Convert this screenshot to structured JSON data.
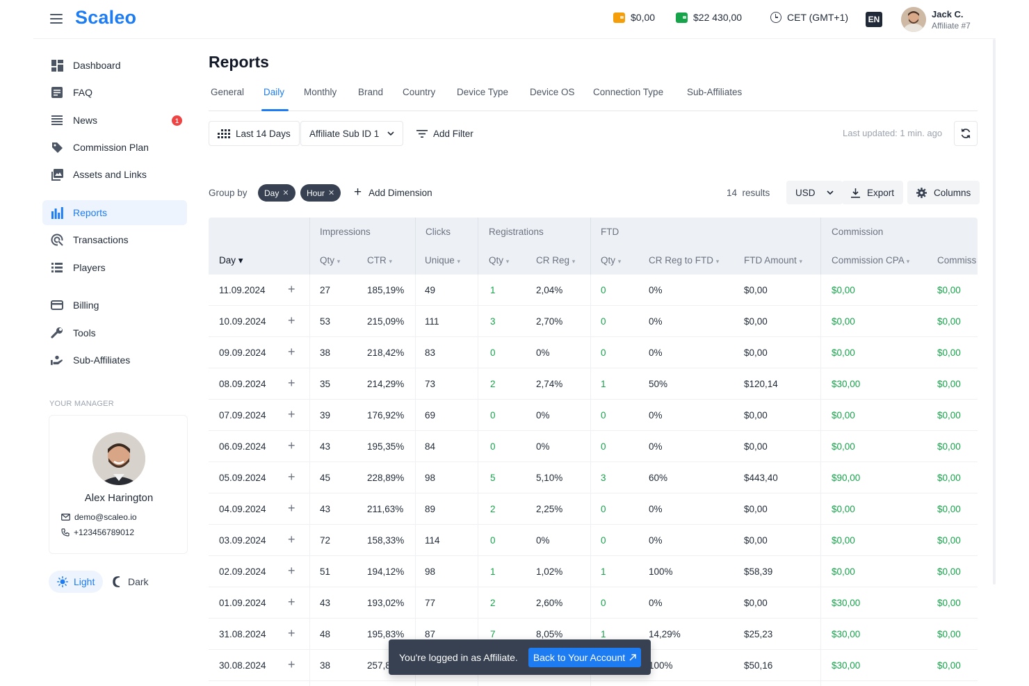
{
  "header": {
    "logo": "Scaleo",
    "balance_1": "$0,00",
    "balance_2": "$22 430,00",
    "timezone": "CET (GMT+1)",
    "language": "EN",
    "user_name": "Jack C.",
    "user_role": "Affiliate #7",
    "colors": {
      "brand": "#1d7cf2",
      "wallet_1": "#f59e0b",
      "wallet_2": "#16a34a"
    }
  },
  "sidebar": {
    "items": [
      {
        "label": "Dashboard",
        "icon": "dashboard-icon"
      },
      {
        "label": "FAQ",
        "icon": "faq-icon"
      },
      {
        "label": "News",
        "icon": "news-icon",
        "badge": "1"
      },
      {
        "label": "Commission Plan",
        "icon": "tag-icon"
      },
      {
        "label": "Assets and Links",
        "icon": "assets-icon"
      },
      {
        "label": "Reports",
        "icon": "bar-chart-icon",
        "active": true
      },
      {
        "label": "Transactions",
        "icon": "transactions-icon"
      },
      {
        "label": "Players",
        "icon": "players-icon"
      },
      {
        "label": "Billing",
        "icon": "card-icon"
      },
      {
        "label": "Tools",
        "icon": "wrench-icon"
      },
      {
        "label": "Sub-Affiliates",
        "icon": "sub-affiliates-icon"
      }
    ],
    "manager_label": "YOUR MANAGER",
    "manager": {
      "name": "Alex Harington",
      "email": "demo@scaleo.io",
      "phone": "+123456789012"
    },
    "theme": {
      "light": "Light",
      "dark": "Dark"
    }
  },
  "main": {
    "title": "Reports",
    "tabs": [
      "General",
      "Daily",
      "Monthly",
      "Brand",
      "Country",
      "Device Type",
      "Device OS",
      "Connection Type",
      "Sub-Affiliates"
    ],
    "active_tab": "Daily",
    "filters": {
      "date_range": "Last 14 Days",
      "sub_id": "Affiliate Sub ID 1",
      "add_filter": "Add Filter",
      "last_updated": "Last updated: 1 min. ago"
    },
    "group_by": {
      "label": "Group by",
      "chips": [
        "Day",
        "Hour"
      ],
      "add_dimension": "Add Dimension",
      "results_count": "14",
      "results_label": "results",
      "currency": "USD",
      "export": "Export",
      "columns": "Columns"
    },
    "table": {
      "groups": [
        "Impressions",
        "Clicks",
        "Registrations",
        "FTD",
        "Commission"
      ],
      "columns": [
        "Day",
        "Qty",
        "CTR",
        "Unique",
        "Qty",
        "CR Reg",
        "Qty",
        "CR Reg to FTD",
        "FTD Amount",
        "Commission CPA",
        "Commiss"
      ],
      "rows": [
        [
          "11.09.2024",
          "27",
          "185,19%",
          "49",
          "1",
          "2,04%",
          "0",
          "0%",
          "$0,00",
          "$0,00",
          "$0,00"
        ],
        [
          "10.09.2024",
          "53",
          "215,09%",
          "111",
          "3",
          "2,70%",
          "0",
          "0%",
          "$0,00",
          "$0,00",
          "$0,00"
        ],
        [
          "09.09.2024",
          "38",
          "218,42%",
          "83",
          "0",
          "0%",
          "0",
          "0%",
          "$0,00",
          "$0,00",
          "$0,00"
        ],
        [
          "08.09.2024",
          "35",
          "214,29%",
          "73",
          "2",
          "2,74%",
          "1",
          "50%",
          "$120,14",
          "$30,00",
          "$0,00"
        ],
        [
          "07.09.2024",
          "39",
          "176,92%",
          "69",
          "0",
          "0%",
          "0",
          "0%",
          "$0,00",
          "$0,00",
          "$0,00"
        ],
        [
          "06.09.2024",
          "43",
          "195,35%",
          "84",
          "0",
          "0%",
          "0",
          "0%",
          "$0,00",
          "$0,00",
          "$0,00"
        ],
        [
          "05.09.2024",
          "45",
          "228,89%",
          "98",
          "5",
          "5,10%",
          "3",
          "60%",
          "$443,40",
          "$90,00",
          "$0,00"
        ],
        [
          "04.09.2024",
          "43",
          "211,63%",
          "89",
          "2",
          "2,25%",
          "0",
          "0%",
          "$0,00",
          "$0,00",
          "$0,00"
        ],
        [
          "03.09.2024",
          "72",
          "158,33%",
          "114",
          "0",
          "0%",
          "0",
          "0%",
          "$0,00",
          "$0,00",
          "$0,00"
        ],
        [
          "02.09.2024",
          "51",
          "194,12%",
          "98",
          "1",
          "1,02%",
          "1",
          "100%",
          "$58,39",
          "$0,00",
          "$0,00"
        ],
        [
          "01.09.2024",
          "43",
          "193,02%",
          "77",
          "2",
          "2,60%",
          "0",
          "0%",
          "$0,00",
          "$30,00",
          "$0,00"
        ],
        [
          "31.08.2024",
          "48",
          "195,83%",
          "87",
          "7",
          "8,05%",
          "1",
          "14,29%",
          "$25,23",
          "$30,00",
          "$0,00"
        ],
        [
          "30.08.2024",
          "38",
          "257,89%",
          "",
          "",
          "",
          "",
          "100%",
          "$50,16",
          "$30,00",
          "$0,00"
        ]
      ]
    }
  },
  "toast": {
    "text": "You're logged in as Affiliate.",
    "button": "Back to Your Account"
  }
}
